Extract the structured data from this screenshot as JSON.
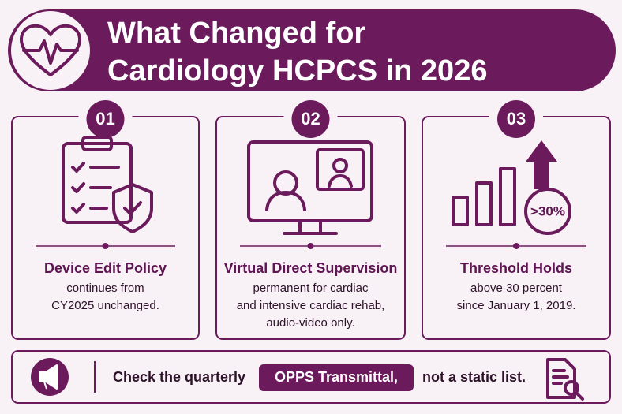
{
  "header": {
    "title": [
      "What Changed for",
      "Cardiology HCPCS in 2026"
    ]
  },
  "cards": [
    {
      "number": "01",
      "heading": "Device Edit Policy",
      "body": [
        "continues from",
        "CY2025 unchanged."
      ]
    },
    {
      "number": "02",
      "heading": "Virtual Direct Supervision",
      "body": [
        "permanent for cardiac",
        "and intensive cardiac rehab,",
        "audio-video only."
      ]
    },
    {
      "number": "03",
      "heading": "Threshold Holds",
      "body": [
        "above 30 percent",
        "since January 1, 2019."
      ],
      "icon_label": ">30%"
    }
  ],
  "footer": {
    "text_before": "Check the quarterly",
    "highlight": "OPPS Transmittal,",
    "text_after": "not a static list."
  }
}
